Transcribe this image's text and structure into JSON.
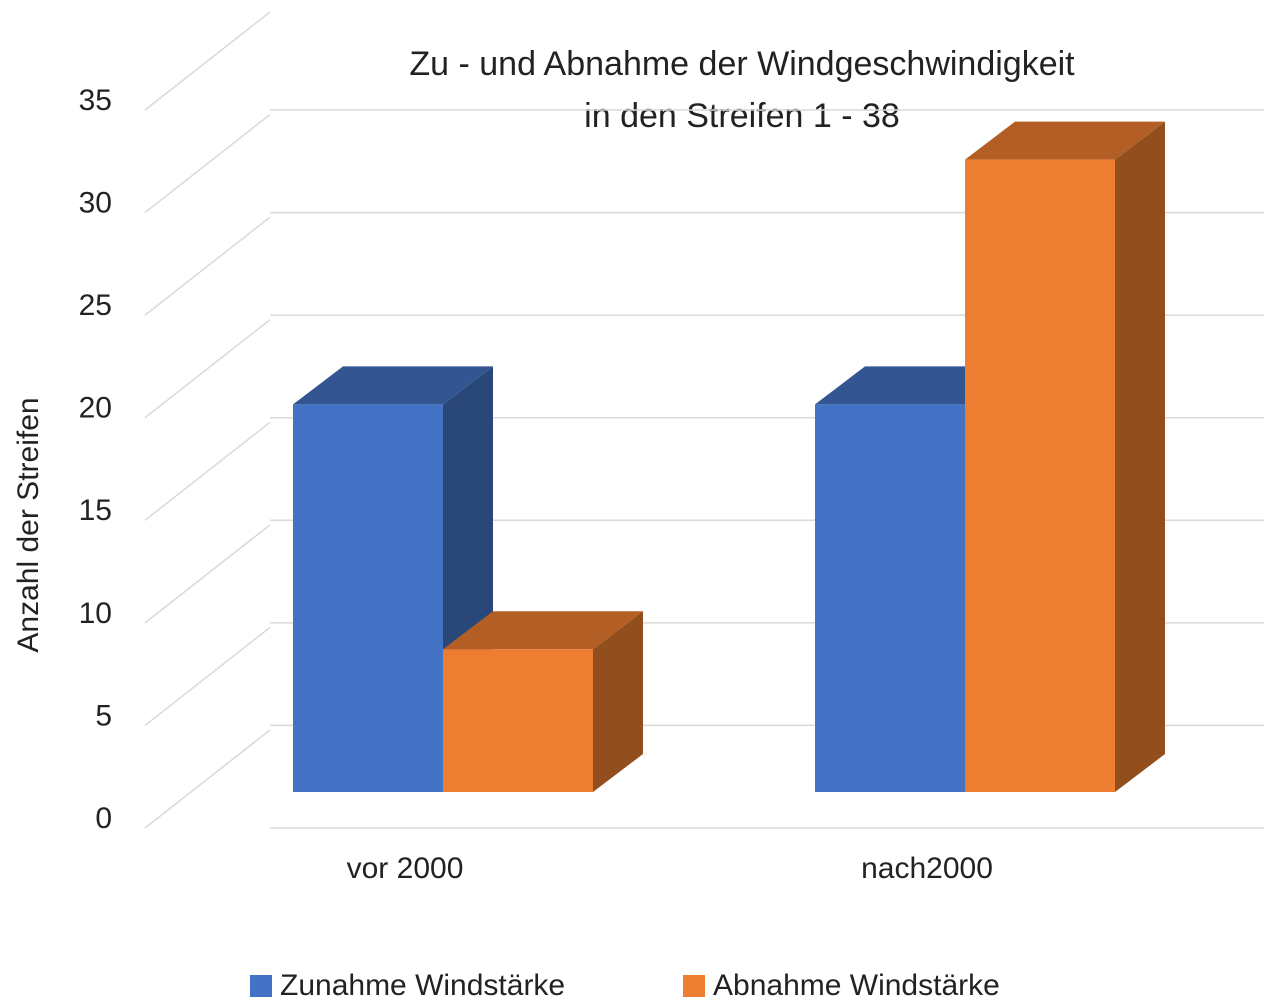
{
  "chart_data": {
    "type": "bar3d",
    "title": [
      "Zu - und Abnahme der Windgeschwindigkeit",
      "in den Streifen 1 - 38"
    ],
    "y_label": "Anzahl der Streifen",
    "categories": [
      "vor 2000",
      "nach2000"
    ],
    "series": [
      {
        "name": "Zunahme Windstärke",
        "color": "#4472c4",
        "values": [
          19,
          19
        ]
      },
      {
        "name": "Abnahme Windstärke",
        "color": "#ed7d31",
        "values": [
          7,
          31
        ]
      }
    ],
    "ylim": [
      0,
      35
    ],
    "yticks": [
      0,
      5,
      10,
      15,
      20,
      25,
      30,
      35
    ],
    "grid": true,
    "legend": "bottom"
  }
}
